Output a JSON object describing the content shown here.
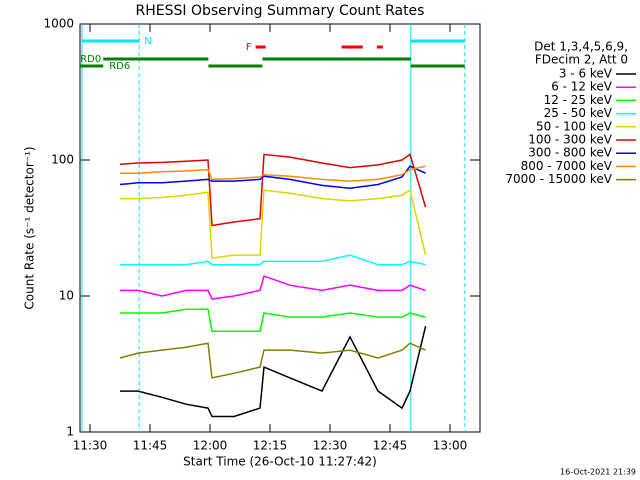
{
  "chart_data": {
    "type": "line",
    "title": "RHESSI Observing Summary Count Rates",
    "xlabel": "Start Time (26-Oct-10 11:27:42)",
    "ylabel": "Count Rate (s⁻¹ detector⁻¹)",
    "footer": "16-Oct-2021 21:39",
    "log_y": true,
    "xlim": [
      687.5,
      787.5
    ],
    "ylim": [
      1,
      1000
    ],
    "xticks": [
      {
        "value": 690,
        "label": "11:30"
      },
      {
        "value": 705,
        "label": "11:45"
      },
      {
        "value": 720,
        "label": "12:00"
      },
      {
        "value": 735,
        "label": "12:15"
      },
      {
        "value": 750,
        "label": "12:30"
      },
      {
        "value": 765,
        "label": "12:45"
      },
      {
        "value": 780,
        "label": "13:00"
      }
    ],
    "yticks": [
      1,
      10,
      100,
      1000
    ],
    "legend_header": [
      "Det 1,3,4,5,6,9,",
      "FDecim 2, Att 0"
    ],
    "x": [
      697.5,
      702,
      708,
      714,
      719.5,
      720.5,
      726,
      732.5,
      733.5,
      740,
      748,
      755,
      762,
      768,
      770,
      773.9
    ],
    "series": [
      {
        "name": "3 - 6 keV",
        "color": "#000000",
        "values": [
          2,
          2,
          1.8,
          1.6,
          1.5,
          1.3,
          1.3,
          1.5,
          3,
          2.5,
          2,
          5,
          2,
          1.5,
          2,
          6
        ]
      },
      {
        "name": "6 - 12 keV",
        "color": "#ff00ff",
        "values": [
          11,
          11,
          10,
          11,
          11,
          9.5,
          10,
          11,
          14,
          12,
          11,
          12,
          11,
          11,
          12,
          11
        ]
      },
      {
        "name": "12 - 25 keV",
        "color": "#00ff00",
        "values": [
          7.5,
          7.5,
          7.5,
          8,
          8,
          5.5,
          5.5,
          5.5,
          7.5,
          7,
          7,
          7.5,
          7,
          7,
          7.5,
          7
        ]
      },
      {
        "name": "25 - 50 keV",
        "color": "#00ffff",
        "values": [
          17,
          17,
          17,
          17,
          18,
          17,
          17,
          17,
          18,
          18,
          18,
          20,
          17,
          17,
          18,
          17
        ]
      },
      {
        "name": "50 - 100 keV",
        "color": "#d8d800",
        "values": [
          52,
          52,
          53,
          55,
          58,
          19,
          20,
          20,
          60,
          57,
          52,
          50,
          52,
          55,
          60,
          20
        ]
      },
      {
        "name": "100 - 300 keV",
        "color": "#e00000",
        "values": [
          93,
          95,
          96,
          98,
          100,
          33,
          35,
          37,
          110,
          105,
          95,
          88,
          92,
          100,
          110,
          45
        ]
      },
      {
        "name": "300 - 800 keV",
        "color": "#0000ff",
        "values": [
          66,
          68,
          68,
          70,
          72,
          70,
          70,
          72,
          76,
          72,
          65,
          62,
          66,
          75,
          90,
          80
        ]
      },
      {
        "name": "800 - 7000 keV",
        "color": "#ff8c00",
        "values": [
          80,
          80,
          82,
          83,
          85,
          72,
          73,
          75,
          78,
          76,
          72,
          70,
          72,
          78,
          85,
          90
        ]
      },
      {
        "name": "7000 - 15000 keV",
        "color": "#808000",
        "values": [
          3.5,
          3.8,
          4,
          4.2,
          4.5,
          2.5,
          2.7,
          3,
          4,
          4,
          3.8,
          4,
          3.5,
          4,
          4.5,
          4
        ]
      }
    ],
    "flags": [
      {
        "label": "N",
        "color": "#00e5ee",
        "segments": [
          [
            688.0,
            702.3
          ],
          [
            770.2,
            783.7
          ]
        ]
      },
      {
        "label": "F",
        "color": "#ff0000",
        "segments": [
          [
            731.4,
            733.9
          ],
          [
            752.9,
            758.2
          ],
          [
            761.7,
            763.2
          ]
        ]
      },
      {
        "label": "RD0",
        "color": "#008000",
        "segments": [
          [
            693.3,
            719.6
          ],
          [
            733.1,
            770.2
          ]
        ]
      },
      {
        "label": "RD6",
        "color": "#008000",
        "segments": [
          [
            687.5,
            693.3
          ],
          [
            719.6,
            733.1
          ],
          [
            770.2,
            783.7
          ]
        ]
      }
    ]
  }
}
